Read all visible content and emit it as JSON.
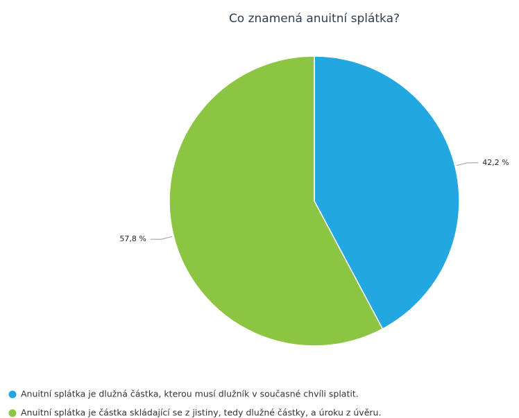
{
  "chart_data": {
    "type": "pie",
    "title": "Co znamená anuitní splátka?",
    "categories": [
      "Anuitní splátka je dlužná částka, kterou musí dlužník v současné chvíli splatit.",
      "Anuitní splátka je částka skládající se z jistiny, tedy dlužné částky, a úroku z úvěru."
    ],
    "values": [
      42.2,
      57.8
    ],
    "value_labels": [
      "42,2 %",
      "57,8 %"
    ],
    "colors": [
      "#22a7e0",
      "#8cc541"
    ],
    "legend": "bottom-left"
  }
}
